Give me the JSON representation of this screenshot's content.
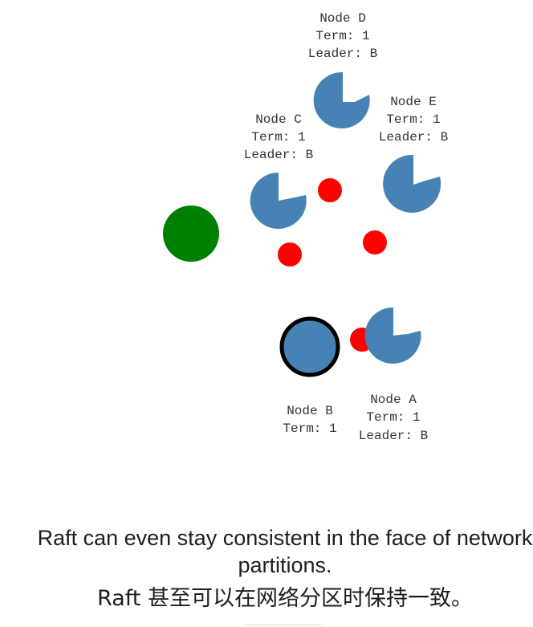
{
  "colors": {
    "node": "#4682b4",
    "message": "#ff0000",
    "client": "#008000",
    "leader_border": "#000000",
    "text": "#333333"
  },
  "nodes": [
    {
      "id": "D",
      "name": "Node D",
      "term": "Term: 1",
      "leader": "Leader: B"
    },
    {
      "id": "E",
      "name": "Node E",
      "term": "Term: 1",
      "leader": "Leader: B"
    },
    {
      "id": "C",
      "name": "Node C",
      "term": "Term: 1",
      "leader": "Leader: B"
    },
    {
      "id": "B",
      "name": "Node B",
      "term": "Term: 1"
    },
    {
      "id": "A",
      "name": "Node A",
      "term": "Term: 1",
      "leader": "Leader: B"
    }
  ],
  "caption": {
    "english": "Raft can even stay consistent in the face of network partitions.",
    "chinese": "Raft 甚至可以在网络分区时保持一致。"
  }
}
